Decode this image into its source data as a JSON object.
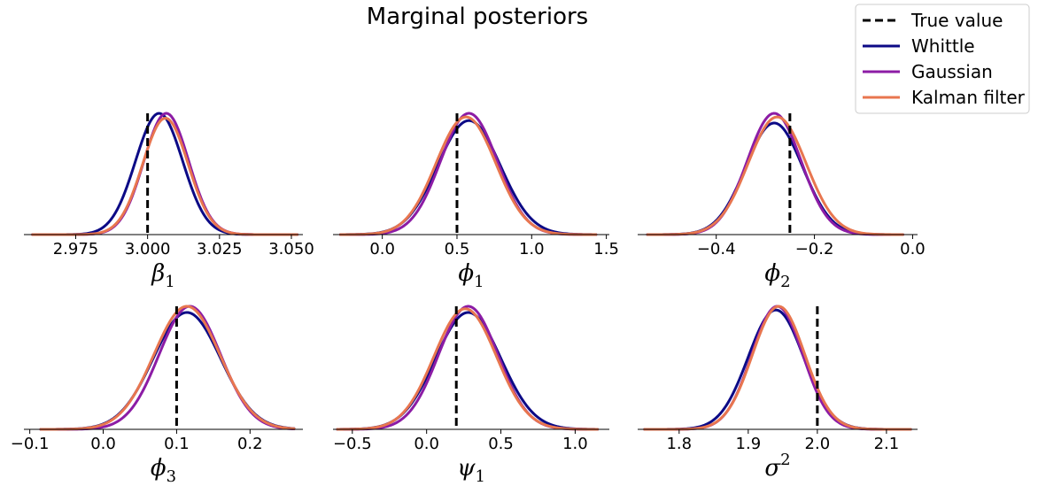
{
  "title": "Marginal posteriors",
  "legend": {
    "placement": "top-right",
    "entries": [
      {
        "label": "True value",
        "color": "#000000",
        "style": "dashed"
      },
      {
        "label": "Whittle",
        "color": "#0c0a86",
        "style": "solid"
      },
      {
        "label": "Gaussian",
        "color": "#8c1ca5",
        "style": "solid"
      },
      {
        "label": "Kalman filter",
        "color": "#e8764f",
        "style": "solid"
      }
    ]
  },
  "chart_data": [
    {
      "type": "line",
      "xlabel": "β",
      "xlabel_sub": "1",
      "xlabel_sup": "",
      "xlim": [
        2.957,
        3.054
      ],
      "xticks": [
        2.975,
        3.0,
        3.025,
        3.05
      ],
      "xtick_labels": [
        "2.975",
        "3.000",
        "3.025",
        "3.050"
      ],
      "true_value": 3.0,
      "series": [
        {
          "name": "Whittle",
          "color": "#0c0a86",
          "mean": 3.004,
          "sd": 0.0082,
          "peak": 1.0,
          "range": [
            2.96,
            3.052
          ]
        },
        {
          "name": "Gaussian",
          "color": "#8c1ca5",
          "mean": 3.0065,
          "sd": 0.0078,
          "peak": 1.0,
          "range": [
            2.96,
            3.052
          ]
        },
        {
          "name": "Kalman filter",
          "color": "#e8764f",
          "mean": 3.0062,
          "sd": 0.0079,
          "peak": 0.96,
          "range": [
            2.96,
            3.052
          ]
        }
      ]
    },
    {
      "type": "line",
      "xlabel": "ϕ",
      "xlabel_sub": "1",
      "xlabel_sup": "",
      "xlim": [
        -0.33,
        1.52
      ],
      "xticks": [
        0.0,
        0.5,
        1.0,
        1.5
      ],
      "xtick_labels": [
        "0.0",
        "0.5",
        "1.0",
        "1.5"
      ],
      "true_value": 0.5,
      "series": [
        {
          "name": "Whittle",
          "color": "#0c0a86",
          "mean": 0.58,
          "sd": 0.21,
          "peak": 0.94,
          "range": [
            -0.28,
            1.43
          ]
        },
        {
          "name": "Gaussian",
          "color": "#8c1ca5",
          "mean": 0.58,
          "sd": 0.19,
          "peak": 1.0,
          "range": [
            -0.28,
            1.43
          ]
        },
        {
          "name": "Kalman filter",
          "color": "#e8764f",
          "mean": 0.56,
          "sd": 0.2,
          "peak": 0.97,
          "range": [
            -0.28,
            1.43
          ]
        }
      ]
    },
    {
      "type": "line",
      "xlabel": "ϕ",
      "xlabel_sub": "2",
      "xlabel_sup": "",
      "xlim": [
        -0.56,
        0.01
      ],
      "xticks": [
        -0.4,
        -0.2,
        0.0
      ],
      "xtick_labels": [
        "−0.4",
        "−0.2",
        "0.0"
      ],
      "true_value": -0.25,
      "series": [
        {
          "name": "Whittle",
          "color": "#0c0a86",
          "mean": -0.282,
          "sd": 0.058,
          "peak": 0.92,
          "range": [
            -0.54,
            -0.02
          ]
        },
        {
          "name": "Gaussian",
          "color": "#8c1ca5",
          "mean": -0.282,
          "sd": 0.055,
          "peak": 1.0,
          "range": [
            -0.54,
            -0.02
          ]
        },
        {
          "name": "Kalman filter",
          "color": "#e8764f",
          "mean": -0.276,
          "sd": 0.059,
          "peak": 0.97,
          "range": [
            -0.54,
            -0.02
          ]
        }
      ]
    },
    {
      "type": "line",
      "xlabel": "ϕ",
      "xlabel_sub": "3",
      "xlabel_sup": "",
      "xlim": [
        -0.108,
        0.272
      ],
      "xticks": [
        -0.1,
        0.0,
        0.1,
        0.2
      ],
      "xtick_labels": [
        "−0.1",
        "0.0",
        "0.1",
        "0.2"
      ],
      "true_value": 0.1,
      "series": [
        {
          "name": "Whittle",
          "color": "#0c0a86",
          "mean": 0.114,
          "sd": 0.046,
          "peak": 0.95,
          "range": [
            -0.085,
            0.26
          ]
        },
        {
          "name": "Gaussian",
          "color": "#8c1ca5",
          "mean": 0.118,
          "sd": 0.042,
          "peak": 1.0,
          "range": [
            -0.085,
            0.26
          ]
        },
        {
          "name": "Kalman filter",
          "color": "#e8764f",
          "mean": 0.114,
          "sd": 0.045,
          "peak": 1.0,
          "range": [
            -0.085,
            0.26
          ]
        }
      ]
    },
    {
      "type": "line",
      "xlabel": "ψ",
      "xlabel_sub": "1",
      "xlabel_sup": "",
      "xlim": [
        -0.63,
        1.23
      ],
      "xticks": [
        -0.5,
        0.0,
        0.5,
        1.0
      ],
      "xtick_labels": [
        "−0.5",
        "0.0",
        "0.5",
        "1.0"
      ],
      "true_value": 0.2,
      "series": [
        {
          "name": "Whittle",
          "color": "#0c0a86",
          "mean": 0.28,
          "sd": 0.22,
          "peak": 0.95,
          "range": [
            -0.6,
            1.15
          ]
        },
        {
          "name": "Gaussian",
          "color": "#8c1ca5",
          "mean": 0.28,
          "sd": 0.2,
          "peak": 1.0,
          "range": [
            -0.6,
            1.15
          ]
        },
        {
          "name": "Kalman filter",
          "color": "#e8764f",
          "mean": 0.26,
          "sd": 0.21,
          "peak": 0.98,
          "range": [
            -0.6,
            1.15
          ]
        }
      ]
    },
    {
      "type": "line",
      "xlabel": "σ",
      "xlabel_sub": "",
      "xlabel_sup": "2",
      "xlim": [
        1.74,
        2.145
      ],
      "xticks": [
        1.8,
        1.9,
        2.0,
        2.1
      ],
      "xtick_labels": [
        "1.8",
        "1.9",
        "2.0",
        "2.1"
      ],
      "true_value": 2.0,
      "series": [
        {
          "name": "Whittle",
          "color": "#0c0a86",
          "mean": 1.94,
          "sd": 0.04,
          "peak": 0.97,
          "range": [
            1.75,
            2.135
          ]
        },
        {
          "name": "Gaussian",
          "color": "#8c1ca5",
          "mean": 1.942,
          "sd": 0.037,
          "peak": 1.0,
          "range": [
            1.75,
            2.135
          ]
        },
        {
          "name": "Kalman filter",
          "color": "#e8764f",
          "mean": 1.944,
          "sd": 0.038,
          "peak": 1.0,
          "range": [
            1.75,
            2.135
          ]
        }
      ]
    }
  ]
}
